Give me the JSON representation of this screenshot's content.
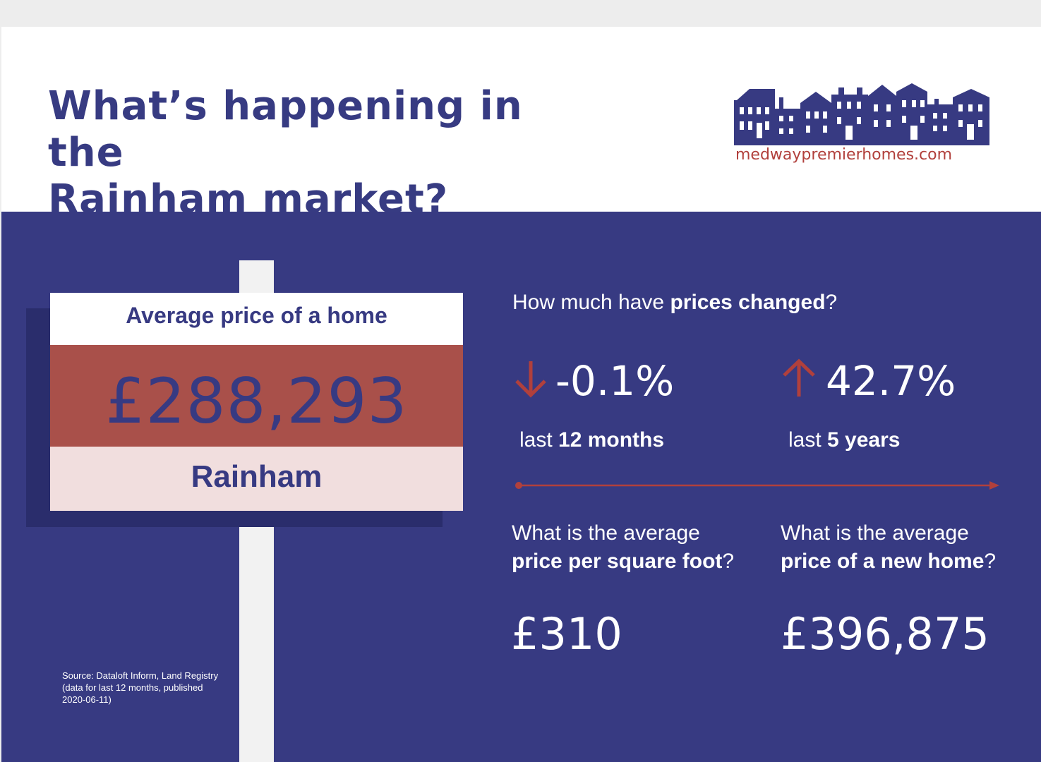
{
  "header": {
    "title_line1": "What’s happening in the",
    "title_line2": "Rainham market?",
    "logo_url_text": "medwaypremierhomes.com"
  },
  "sign": {
    "label": "Average price of a home",
    "price": "£288,293",
    "area": "Rainham"
  },
  "price_change": {
    "question_pre": "How much have ",
    "question_bold": "prices changed",
    "question_post": "?",
    "stats": [
      {
        "value": "-0.1%",
        "direction": "down",
        "period_pre": "last ",
        "period_bold": "12 months"
      },
      {
        "value": "42.7%",
        "direction": "up",
        "period_pre": "last ",
        "period_bold": "5 years"
      }
    ]
  },
  "sqft": {
    "line1": "What is the average",
    "line2_bold": "price per square foot",
    "line2_post": "?",
    "value": "£310"
  },
  "new_home": {
    "line1": "What is the average",
    "line2_bold": "price of a new home",
    "line2_post": "?",
    "value": "£396,875"
  },
  "source": "Source: Dataloft Inform, Land Registry (data for last 12 months, published 2020-06-11)",
  "colors": {
    "navy": "#373a82",
    "red": "#b1403c",
    "sign_red": "#a9504a",
    "sign_pink": "#f1dede"
  }
}
